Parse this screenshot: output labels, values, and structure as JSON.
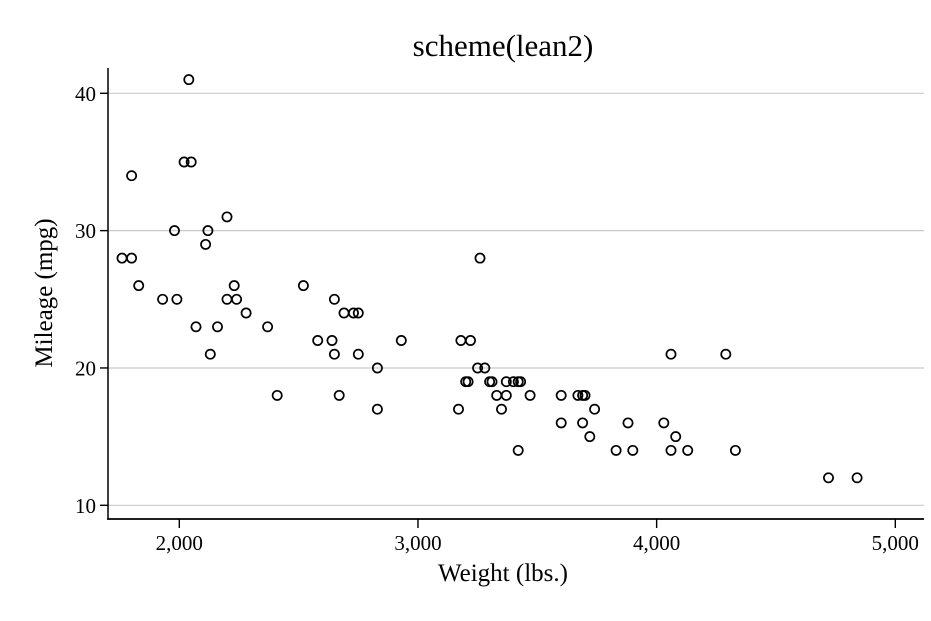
{
  "chart_data": {
    "type": "scatter",
    "title": "scheme(lean2)",
    "xlabel": "Weight (lbs.)",
    "ylabel": "Mileage (mpg)",
    "legend": "none",
    "grid": "horizontal",
    "marker": "hollow-circle",
    "xlim": [
      1700,
      5110
    ],
    "ylim": [
      9,
      42
    ],
    "x_ticks": [
      {
        "value": 2000,
        "label": "2,000"
      },
      {
        "value": 3000,
        "label": "3,000"
      },
      {
        "value": 4000,
        "label": "4,000"
      },
      {
        "value": 5000,
        "label": "5,000"
      }
    ],
    "y_ticks": [
      {
        "value": 10,
        "label": "10"
      },
      {
        "value": 20,
        "label": "20"
      },
      {
        "value": 30,
        "label": "30"
      },
      {
        "value": 40,
        "label": "40"
      }
    ],
    "colors": {
      "marker_stroke": "#000000",
      "gridline": "#c9c9c9",
      "axis": "#000000",
      "background": "#ffffff",
      "text": "#000000"
    },
    "columns": [
      "weight_lbs",
      "mpg"
    ],
    "points": [
      [
        2930,
        22
      ],
      [
        3350,
        17
      ],
      [
        2640,
        22
      ],
      [
        3250,
        20
      ],
      [
        4080,
        15
      ],
      [
        3670,
        18
      ],
      [
        2230,
        26
      ],
      [
        3280,
        20
      ],
      [
        3880,
        16
      ],
      [
        3400,
        19
      ],
      [
        4330,
        14
      ],
      [
        3900,
        14
      ],
      [
        4290,
        21
      ],
      [
        2110,
        29
      ],
      [
        3690,
        16
      ],
      [
        3180,
        22
      ],
      [
        3220,
        22
      ],
      [
        2750,
        24
      ],
      [
        3430,
        19
      ],
      [
        2120,
        30
      ],
      [
        3600,
        18
      ],
      [
        3600,
        16
      ],
      [
        3740,
        17
      ],
      [
        1800,
        28
      ],
      [
        2650,
        21
      ],
      [
        4840,
        12
      ],
      [
        4720,
        12
      ],
      [
        3830,
        14
      ],
      [
        2580,
        22
      ],
      [
        4060,
        14
      ],
      [
        3720,
        15
      ],
      [
        3370,
        18
      ],
      [
        4130,
        14
      ],
      [
        2830,
        20
      ],
      [
        4060,
        21
      ],
      [
        3310,
        19
      ],
      [
        3300,
        19
      ],
      [
        3690,
        18
      ],
      [
        3370,
        19
      ],
      [
        2730,
        24
      ],
      [
        4030,
        16
      ],
      [
        3260,
        28
      ],
      [
        1800,
        34
      ],
      [
        2200,
        25
      ],
      [
        2520,
        26
      ],
      [
        3330,
        18
      ],
      [
        3700,
        18
      ],
      [
        3470,
        18
      ],
      [
        3210,
        19
      ],
      [
        3200,
        19
      ],
      [
        3420,
        19
      ],
      [
        2690,
        24
      ],
      [
        2830,
        17
      ],
      [
        2070,
        23
      ],
      [
        2650,
        25
      ],
      [
        2370,
        23
      ],
      [
        2020,
        35
      ],
      [
        2280,
        24
      ],
      [
        2750,
        21
      ],
      [
        2130,
        21
      ],
      [
        2240,
        25
      ],
      [
        1760,
        28
      ],
      [
        1980,
        30
      ],
      [
        3420,
        14
      ],
      [
        1830,
        26
      ],
      [
        2050,
        35
      ],
      [
        2410,
        18
      ],
      [
        2200,
        31
      ],
      [
        2670,
        18
      ],
      [
        2160,
        23
      ],
      [
        2040,
        41
      ],
      [
        1930,
        25
      ],
      [
        1990,
        25
      ],
      [
        3170,
        17
      ]
    ]
  }
}
